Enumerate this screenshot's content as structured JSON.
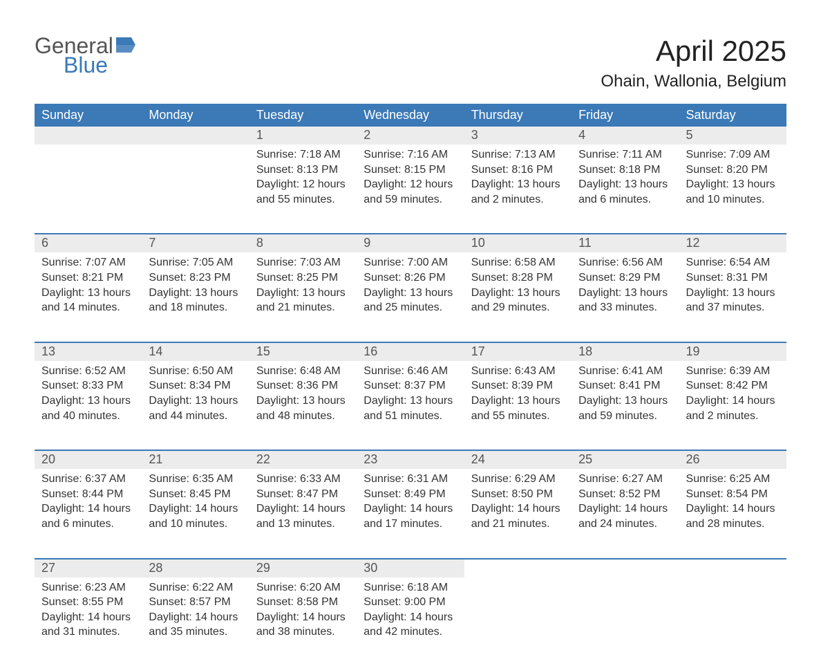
{
  "logo": {
    "word1": "General",
    "word2": "Blue",
    "icon_color": "#3b79b7"
  },
  "title": {
    "month": "April 2025",
    "location": "Ohain, Wallonia, Belgium"
  },
  "colors": {
    "header_bg": "#3b79b7",
    "header_text": "#ffffff",
    "daynum_bg": "#ececec",
    "daynum_text": "#555555",
    "body_text": "#333333",
    "background": "#ffffff",
    "week_separator": "#3b79b7"
  },
  "typography": {
    "font_family": "Arial, Helvetica, sans-serif",
    "month_fontsize": 42,
    "location_fontsize": 24,
    "header_fontsize": 18,
    "daynum_fontsize": 18,
    "cell_fontsize": 16
  },
  "labels": {
    "sunrise": "Sunrise:",
    "sunset": "Sunset:",
    "daylight": "Daylight:"
  },
  "weekdays": [
    "Sunday",
    "Monday",
    "Tuesday",
    "Wednesday",
    "Thursday",
    "Friday",
    "Saturday"
  ],
  "weeks": [
    [
      null,
      null,
      {
        "n": "1",
        "sr": "7:18 AM",
        "ss": "8:13 PM",
        "dl": "12 hours and 55 minutes."
      },
      {
        "n": "2",
        "sr": "7:16 AM",
        "ss": "8:15 PM",
        "dl": "12 hours and 59 minutes."
      },
      {
        "n": "3",
        "sr": "7:13 AM",
        "ss": "8:16 PM",
        "dl": "13 hours and 2 minutes."
      },
      {
        "n": "4",
        "sr": "7:11 AM",
        "ss": "8:18 PM",
        "dl": "13 hours and 6 minutes."
      },
      {
        "n": "5",
        "sr": "7:09 AM",
        "ss": "8:20 PM",
        "dl": "13 hours and 10 minutes."
      }
    ],
    [
      {
        "n": "6",
        "sr": "7:07 AM",
        "ss": "8:21 PM",
        "dl": "13 hours and 14 minutes."
      },
      {
        "n": "7",
        "sr": "7:05 AM",
        "ss": "8:23 PM",
        "dl": "13 hours and 18 minutes."
      },
      {
        "n": "8",
        "sr": "7:03 AM",
        "ss": "8:25 PM",
        "dl": "13 hours and 21 minutes."
      },
      {
        "n": "9",
        "sr": "7:00 AM",
        "ss": "8:26 PM",
        "dl": "13 hours and 25 minutes."
      },
      {
        "n": "10",
        "sr": "6:58 AM",
        "ss": "8:28 PM",
        "dl": "13 hours and 29 minutes."
      },
      {
        "n": "11",
        "sr": "6:56 AM",
        "ss": "8:29 PM",
        "dl": "13 hours and 33 minutes."
      },
      {
        "n": "12",
        "sr": "6:54 AM",
        "ss": "8:31 PM",
        "dl": "13 hours and 37 minutes."
      }
    ],
    [
      {
        "n": "13",
        "sr": "6:52 AM",
        "ss": "8:33 PM",
        "dl": "13 hours and 40 minutes."
      },
      {
        "n": "14",
        "sr": "6:50 AM",
        "ss": "8:34 PM",
        "dl": "13 hours and 44 minutes."
      },
      {
        "n": "15",
        "sr": "6:48 AM",
        "ss": "8:36 PM",
        "dl": "13 hours and 48 minutes."
      },
      {
        "n": "16",
        "sr": "6:46 AM",
        "ss": "8:37 PM",
        "dl": "13 hours and 51 minutes."
      },
      {
        "n": "17",
        "sr": "6:43 AM",
        "ss": "8:39 PM",
        "dl": "13 hours and 55 minutes."
      },
      {
        "n": "18",
        "sr": "6:41 AM",
        "ss": "8:41 PM",
        "dl": "13 hours and 59 minutes."
      },
      {
        "n": "19",
        "sr": "6:39 AM",
        "ss": "8:42 PM",
        "dl": "14 hours and 2 minutes."
      }
    ],
    [
      {
        "n": "20",
        "sr": "6:37 AM",
        "ss": "8:44 PM",
        "dl": "14 hours and 6 minutes."
      },
      {
        "n": "21",
        "sr": "6:35 AM",
        "ss": "8:45 PM",
        "dl": "14 hours and 10 minutes."
      },
      {
        "n": "22",
        "sr": "6:33 AM",
        "ss": "8:47 PM",
        "dl": "14 hours and 13 minutes."
      },
      {
        "n": "23",
        "sr": "6:31 AM",
        "ss": "8:49 PM",
        "dl": "14 hours and 17 minutes."
      },
      {
        "n": "24",
        "sr": "6:29 AM",
        "ss": "8:50 PM",
        "dl": "14 hours and 21 minutes."
      },
      {
        "n": "25",
        "sr": "6:27 AM",
        "ss": "8:52 PM",
        "dl": "14 hours and 24 minutes."
      },
      {
        "n": "26",
        "sr": "6:25 AM",
        "ss": "8:54 PM",
        "dl": "14 hours and 28 minutes."
      }
    ],
    [
      {
        "n": "27",
        "sr": "6:23 AM",
        "ss": "8:55 PM",
        "dl": "14 hours and 31 minutes."
      },
      {
        "n": "28",
        "sr": "6:22 AM",
        "ss": "8:57 PM",
        "dl": "14 hours and 35 minutes."
      },
      {
        "n": "29",
        "sr": "6:20 AM",
        "ss": "8:58 PM",
        "dl": "14 hours and 38 minutes."
      },
      {
        "n": "30",
        "sr": "6:18 AM",
        "ss": "9:00 PM",
        "dl": "14 hours and 42 minutes."
      },
      null,
      null,
      null
    ]
  ]
}
